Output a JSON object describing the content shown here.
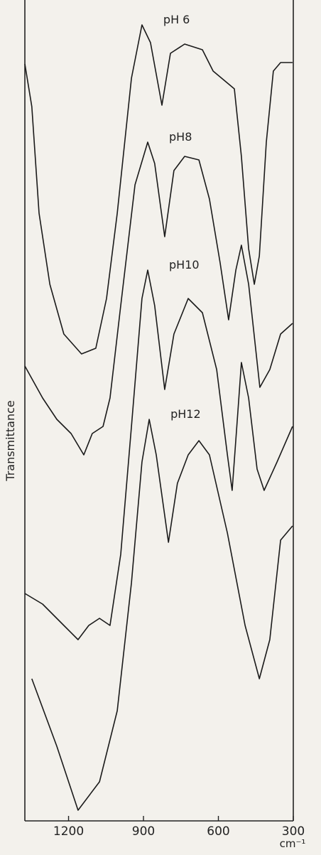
{
  "chart_data": {
    "type": "line",
    "y_label": "Transmittance",
    "x_label": "cm⁻¹",
    "xlim": [
      1375,
      300
    ],
    "ylim": [
      0,
      1155
    ],
    "xticks": [
      1200,
      900,
      600,
      300
    ],
    "grid": false,
    "series": [
      {
        "name": "pH 6",
        "color": "#1a1a1a",
        "x": [
          1375,
          1347,
          1318,
          1275,
          1219,
          1148,
          1091,
          1048,
          1005,
          948,
          906,
          872,
          826,
          792,
          735,
          664,
          621,
          536,
          508,
          479,
          456,
          436,
          408,
          380,
          351,
          303
        ],
        "values": [
          1065,
          1005,
          855,
          755,
          685,
          657,
          665,
          735,
          855,
          1045,
          1120,
          1095,
          1007,
          1080,
          1093,
          1085,
          1055,
          1030,
          935,
          805,
          755,
          795,
          955,
          1055,
          1067,
          1067
        ]
      },
      {
        "name": "pH8",
        "color": "#1a1a1a",
        "x": [
          1375,
          1304,
          1247,
          1190,
          1139,
          1105,
          1062,
          1034,
          991,
          934,
          883,
          855,
          815,
          778,
          735,
          678,
          636,
          593,
          559,
          530,
          508,
          479,
          434,
          394,
          351,
          303
        ],
        "values": [
          640,
          595,
          565,
          545,
          515,
          545,
          555,
          595,
          725,
          895,
          955,
          925,
          822,
          915,
          935,
          930,
          875,
          785,
          705,
          775,
          810,
          755,
          610,
          635,
          685,
          700
        ]
      },
      {
        "name": "pH10",
        "color": "#1a1a1a",
        "x": [
          1375,
          1304,
          1219,
          1162,
          1119,
          1076,
          1034,
          991,
          948,
          906,
          883,
          855,
          815,
          778,
          721,
          664,
          607,
          564,
          545,
          522,
          508,
          479,
          445,
          417,
          365,
          303
        ],
        "values": [
          320,
          305,
          275,
          255,
          275,
          285,
          275,
          375,
          555,
          735,
          775,
          725,
          607,
          685,
          735,
          715,
          635,
          515,
          465,
          575,
          645,
          595,
          495,
          465,
          505,
          555
        ]
      },
      {
        "name": "pH12",
        "color": "#1a1a1a",
        "x": [
          1347,
          1247,
          1162,
          1076,
          1005,
          948,
          906,
          877,
          849,
          800,
          764,
          721,
          678,
          636,
          564,
          493,
          436,
          394,
          351,
          303
        ],
        "values": [
          200,
          105,
          15,
          55,
          155,
          335,
          505,
          565,
          515,
          392,
          475,
          515,
          535,
          515,
          405,
          275,
          200,
          255,
          395,
          415
        ]
      }
    ]
  }
}
